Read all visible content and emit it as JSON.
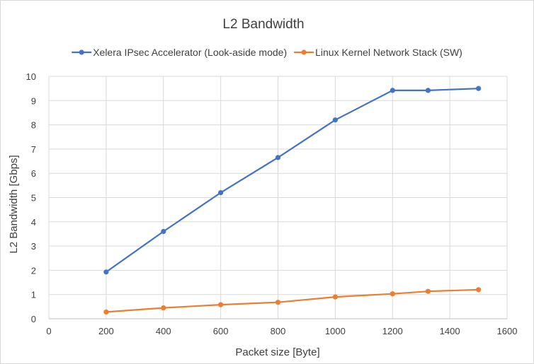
{
  "chart_data": {
    "type": "line",
    "title": "L2 Bandwidth",
    "xlabel": "Packet size [Byte]",
    "ylabel": "L2 Bandwidth [Gbps]",
    "xlim": [
      0,
      1600
    ],
    "ylim": [
      0,
      10
    ],
    "x_ticks": [
      0,
      200,
      400,
      600,
      800,
      1000,
      1200,
      1400,
      1600
    ],
    "y_ticks": [
      0,
      1,
      2,
      3,
      4,
      5,
      6,
      7,
      8,
      9,
      10
    ],
    "grid": true,
    "legend_position": "top",
    "series": [
      {
        "name": "Xelera IPsec Accelerator (Look-aside mode)",
        "color": "#4472c4",
        "points": [
          {
            "x": 200,
            "y": 1.93
          },
          {
            "x": 400,
            "y": 3.6
          },
          {
            "x": 600,
            "y": 5.2
          },
          {
            "x": 800,
            "y": 6.65
          },
          {
            "x": 1000,
            "y": 8.2
          },
          {
            "x": 1200,
            "y": 9.42
          },
          {
            "x": 1324,
            "y": 9.42
          },
          {
            "x": 1500,
            "y": 9.5
          }
        ]
      },
      {
        "name": "Linux Kernel Network Stack (SW)",
        "color": "#ed7d31",
        "points": [
          {
            "x": 200,
            "y": 0.28
          },
          {
            "x": 400,
            "y": 0.45
          },
          {
            "x": 600,
            "y": 0.58
          },
          {
            "x": 800,
            "y": 0.68
          },
          {
            "x": 1000,
            "y": 0.9
          },
          {
            "x": 1200,
            "y": 1.03
          },
          {
            "x": 1324,
            "y": 1.13
          },
          {
            "x": 1500,
            "y": 1.2
          }
        ]
      }
    ]
  }
}
